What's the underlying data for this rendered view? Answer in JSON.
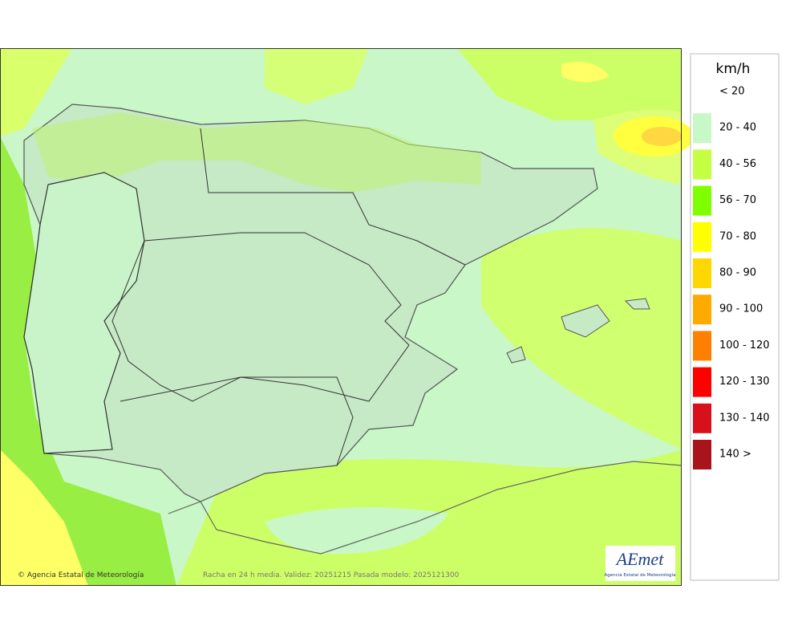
{
  "legend": {
    "title": "km/h",
    "items": [
      {
        "label": "< 20",
        "color": "#ffffff"
      },
      {
        "label": "20 - 40",
        "color": "#c8f7c8"
      },
      {
        "label": "40 - 56",
        "color": "#c4ff44"
      },
      {
        "label": "56 - 70",
        "color": "#80ff00"
      },
      {
        "label": "70 - 80",
        "color": "#ffff00"
      },
      {
        "label": "80 - 90",
        "color": "#ffd700"
      },
      {
        "label": "90 - 100",
        "color": "#ffaa00"
      },
      {
        "label": "100 - 120",
        "color": "#ff8000"
      },
      {
        "label": "120 - 130",
        "color": "#ff0000"
      },
      {
        "label": "130 - 140",
        "color": "#d7101c"
      },
      {
        "label": "140 >",
        "color": "#a8141c"
      }
    ]
  },
  "footer": {
    "credit": "© Agencia Estatal de Meteorología",
    "caption": "Racha en 24 h media. Validez: 20251215 Pasada modelo: 2025121300"
  },
  "logo": {
    "name": "AEmet",
    "subtitle": "Agencia Estatal de Meteorología"
  }
}
